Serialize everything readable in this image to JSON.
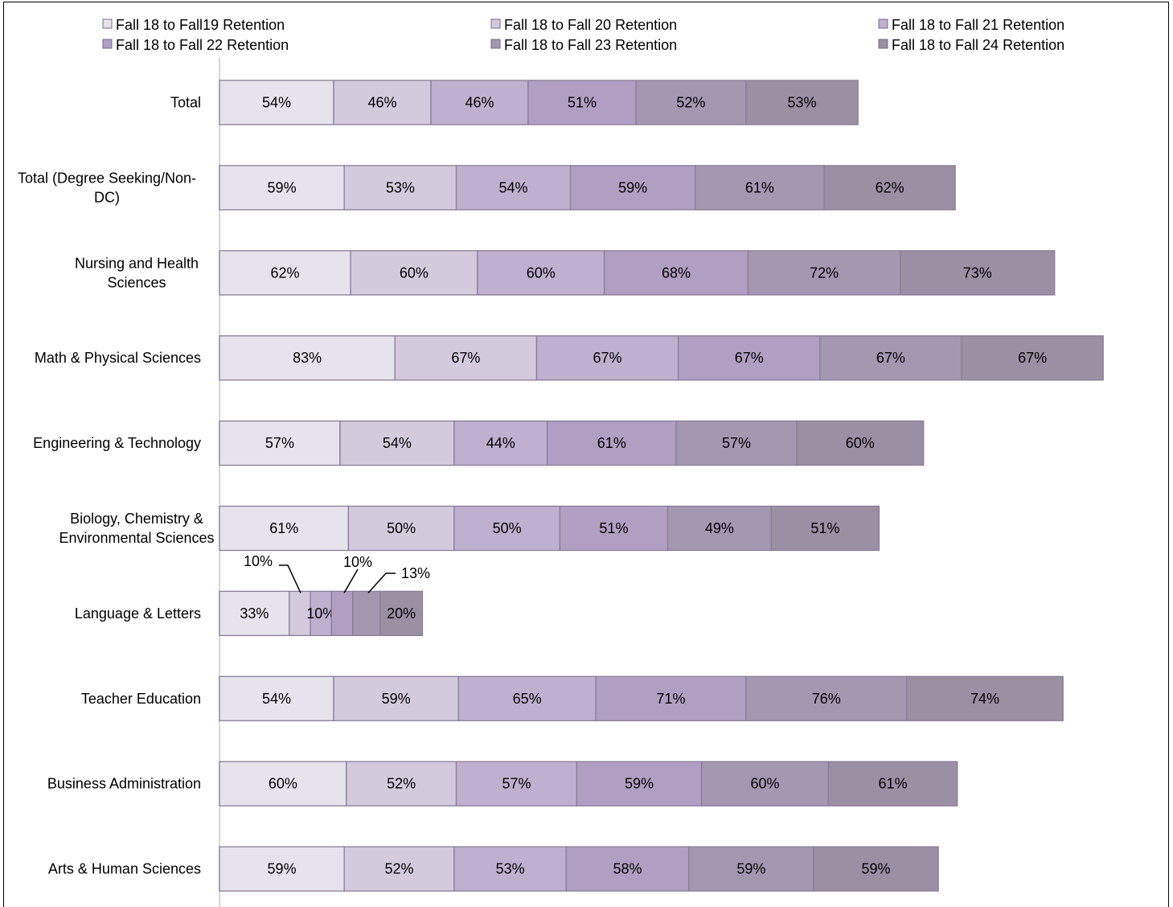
{
  "chart_data": {
    "type": "bar",
    "orientation": "horizontal",
    "stacked": true,
    "categories": [
      "Total",
      "Total (Degree Seeking/Non-DC)",
      "Nursing and Health Sciences",
      "Math & Physical Sciences",
      "Engineering & Technology",
      "Biology, Chemistry & Environmental Sciences",
      "Language & Letters",
      "Teacher Education",
      "Business Administration",
      "Arts & Human Sciences"
    ],
    "category_lines": [
      [
        "Total"
      ],
      [
        "Total (Degree Seeking/Non-",
        "DC)"
      ],
      [
        "Nursing and Health",
        "Sciences"
      ],
      [
        "Math & Physical Sciences"
      ],
      [
        "Engineering & Technology"
      ],
      [
        "Biology, Chemistry &",
        "Environmental Sciences"
      ],
      [
        "Language & Letters"
      ],
      [
        "Teacher Education"
      ],
      [
        "Business Administration"
      ],
      [
        "Arts & Human Sciences"
      ]
    ],
    "series": [
      {
        "name": "Fall 18 to Fall19  Retention",
        "color": "#e6e3ec",
        "values": [
          54,
          59,
          62,
          83,
          57,
          61,
          33,
          54,
          60,
          59
        ],
        "labels": [
          "54%",
          "59%",
          "62%",
          "83%",
          "57%",
          "61%",
          "33%",
          "54%",
          "60%",
          "59%"
        ]
      },
      {
        "name": "Fall 18 to Fall 20  Retention",
        "color": "#d3cbdc",
        "values": [
          46,
          53,
          60,
          67,
          54,
          50,
          10,
          59,
          52,
          52
        ],
        "labels": [
          "46%",
          "53%",
          "60%",
          "67%",
          "54%",
          "50%",
          "10%",
          "59%",
          "52%",
          "52%"
        ]
      },
      {
        "name": "Fall 18 to Fall 21 Retention",
        "color": "#bfb0cf",
        "values": [
          46,
          54,
          60,
          67,
          44,
          50,
          10,
          65,
          57,
          53
        ],
        "labels": [
          "46%",
          "54%",
          "60%",
          "67%",
          "44%",
          "50%",
          "10%",
          "65%",
          "57%",
          "53%"
        ]
      },
      {
        "name": "Fall 18 to Fall 22 Retention",
        "color": "#b09fc2",
        "values": [
          51,
          59,
          68,
          67,
          61,
          51,
          10,
          71,
          59,
          58
        ],
        "labels": [
          "51%",
          "59%",
          "68%",
          "67%",
          "61%",
          "51%",
          "10%",
          "71%",
          "59%",
          "58%"
        ]
      },
      {
        "name": "Fall 18 to Fall 23 Retention",
        "color": "#a497b0",
        "values": [
          52,
          61,
          72,
          67,
          57,
          49,
          13,
          76,
          60,
          59
        ],
        "labels": [
          "52%",
          "61%",
          "72%",
          "67%",
          "57%",
          "49%",
          "13%",
          "76%",
          "60%",
          "59%"
        ]
      },
      {
        "name": "Fall 18 to Fall 24 Retention",
        "color": "#9b8fa3",
        "values": [
          53,
          62,
          73,
          67,
          60,
          51,
          20,
          74,
          61,
          59
        ],
        "labels": [
          "53%",
          "62%",
          "73%",
          "67%",
          "60%",
          "51%",
          "20%",
          "74%",
          "61%",
          "59%"
        ]
      }
    ],
    "callout_labels": [
      "10%",
      "10%",
      "13%"
    ],
    "legend_position": "top",
    "grid": false,
    "xlim": [
      0,
      424
    ]
  }
}
